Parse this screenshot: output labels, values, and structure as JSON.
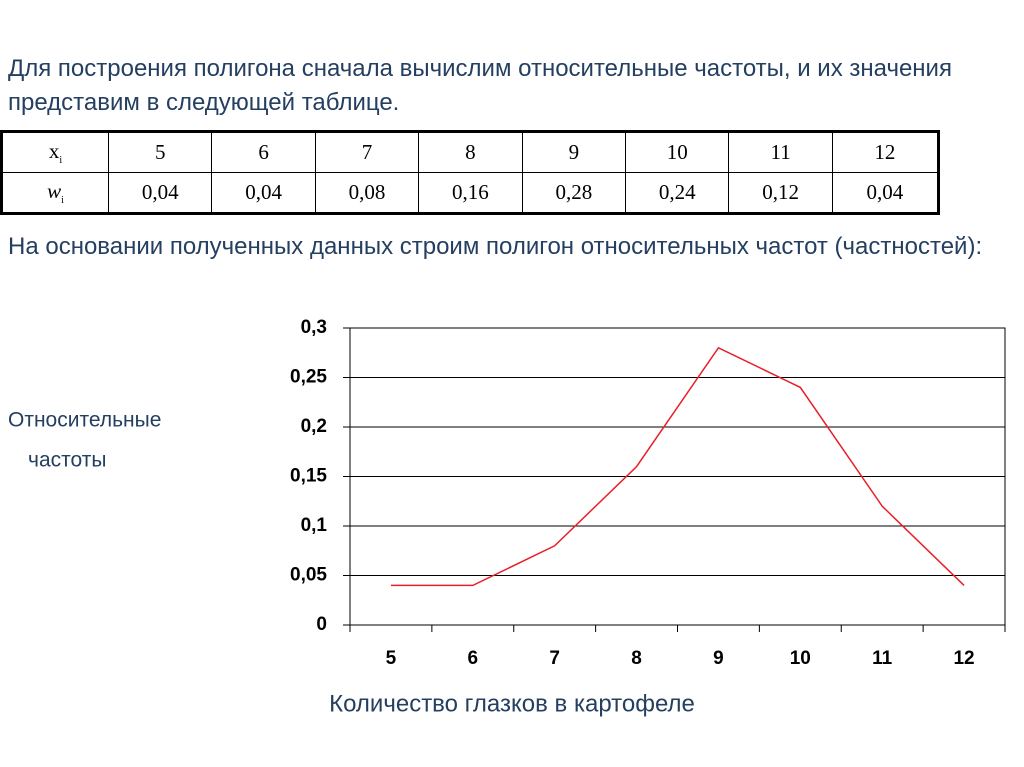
{
  "paragraphs": [
    "Для построения полигона сначала вычислим относительные частоты, и их значения представим в следующей таблице.",
    "На основании полученных данных строим полигон относительных частот (частностей):"
  ],
  "table": {
    "rows": [
      [
        {
          "text": "x",
          "sub": "i"
        },
        "5",
        "6",
        "7",
        "8",
        "9",
        "10",
        "11",
        "12"
      ],
      [
        {
          "text": "w",
          "sub": "i"
        },
        "0,04",
        "0,04",
        "0,08",
        "0,16",
        "0,28",
        "0,24",
        "0,12",
        "0,04"
      ]
    ]
  },
  "chart_data": {
    "type": "line",
    "ylabel": [
      "Относительные",
      "частоты"
    ],
    "xlabel": "Количество глазков в картофеле",
    "categories": [
      "5",
      "6",
      "7",
      "8",
      "9",
      "10",
      "11",
      "12"
    ],
    "values": [
      0.04,
      0.04,
      0.08,
      0.16,
      0.28,
      0.24,
      0.12,
      0.04
    ],
    "color": "#e8202a",
    "ylim": [
      0,
      0.3
    ],
    "yticks": [
      0,
      {
        "value": 0.05,
        "label": "0,05"
      },
      {
        "value": 0.1,
        "label": "0,1"
      },
      {
        "value": 0.15,
        "label": "0,15"
      },
      {
        "value": 0.2,
        "label": "0,2"
      },
      {
        "value": 0.25,
        "label": "0,25"
      },
      {
        "value": 0.3,
        "label": "0,3"
      }
    ],
    "grid": true
  }
}
